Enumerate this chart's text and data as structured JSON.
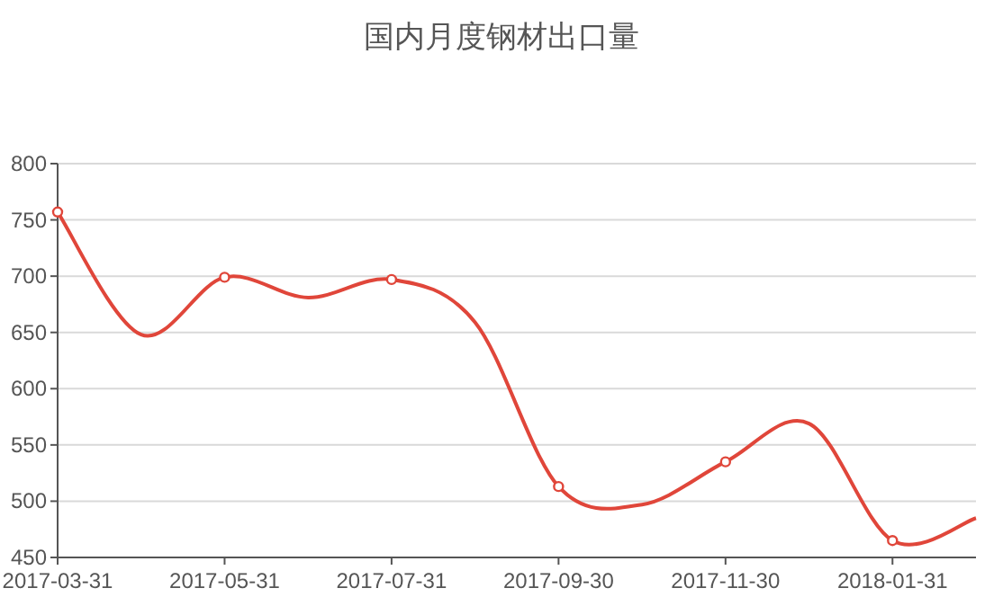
{
  "chart_data": {
    "type": "line",
    "title": "国内月度钢材出口量",
    "categories": [
      "2017-03-31",
      null,
      "2017-05-31",
      null,
      "2017-07-31",
      null,
      "2017-09-30",
      null,
      "2017-11-30",
      null,
      "2018-01-31",
      null
    ],
    "series": [
      {
        "color": "#e0463a",
        "values": [
          757,
          648,
          699,
          681,
          697,
          659,
          513,
          497,
          535,
          569,
          465,
          485
        ]
      }
    ],
    "ylim": [
      450,
      800
    ],
    "yticks": [
      450,
      500,
      550,
      600,
      650,
      700,
      750,
      800
    ],
    "grid": "y",
    "marker": "circle",
    "line_style": "solid"
  }
}
